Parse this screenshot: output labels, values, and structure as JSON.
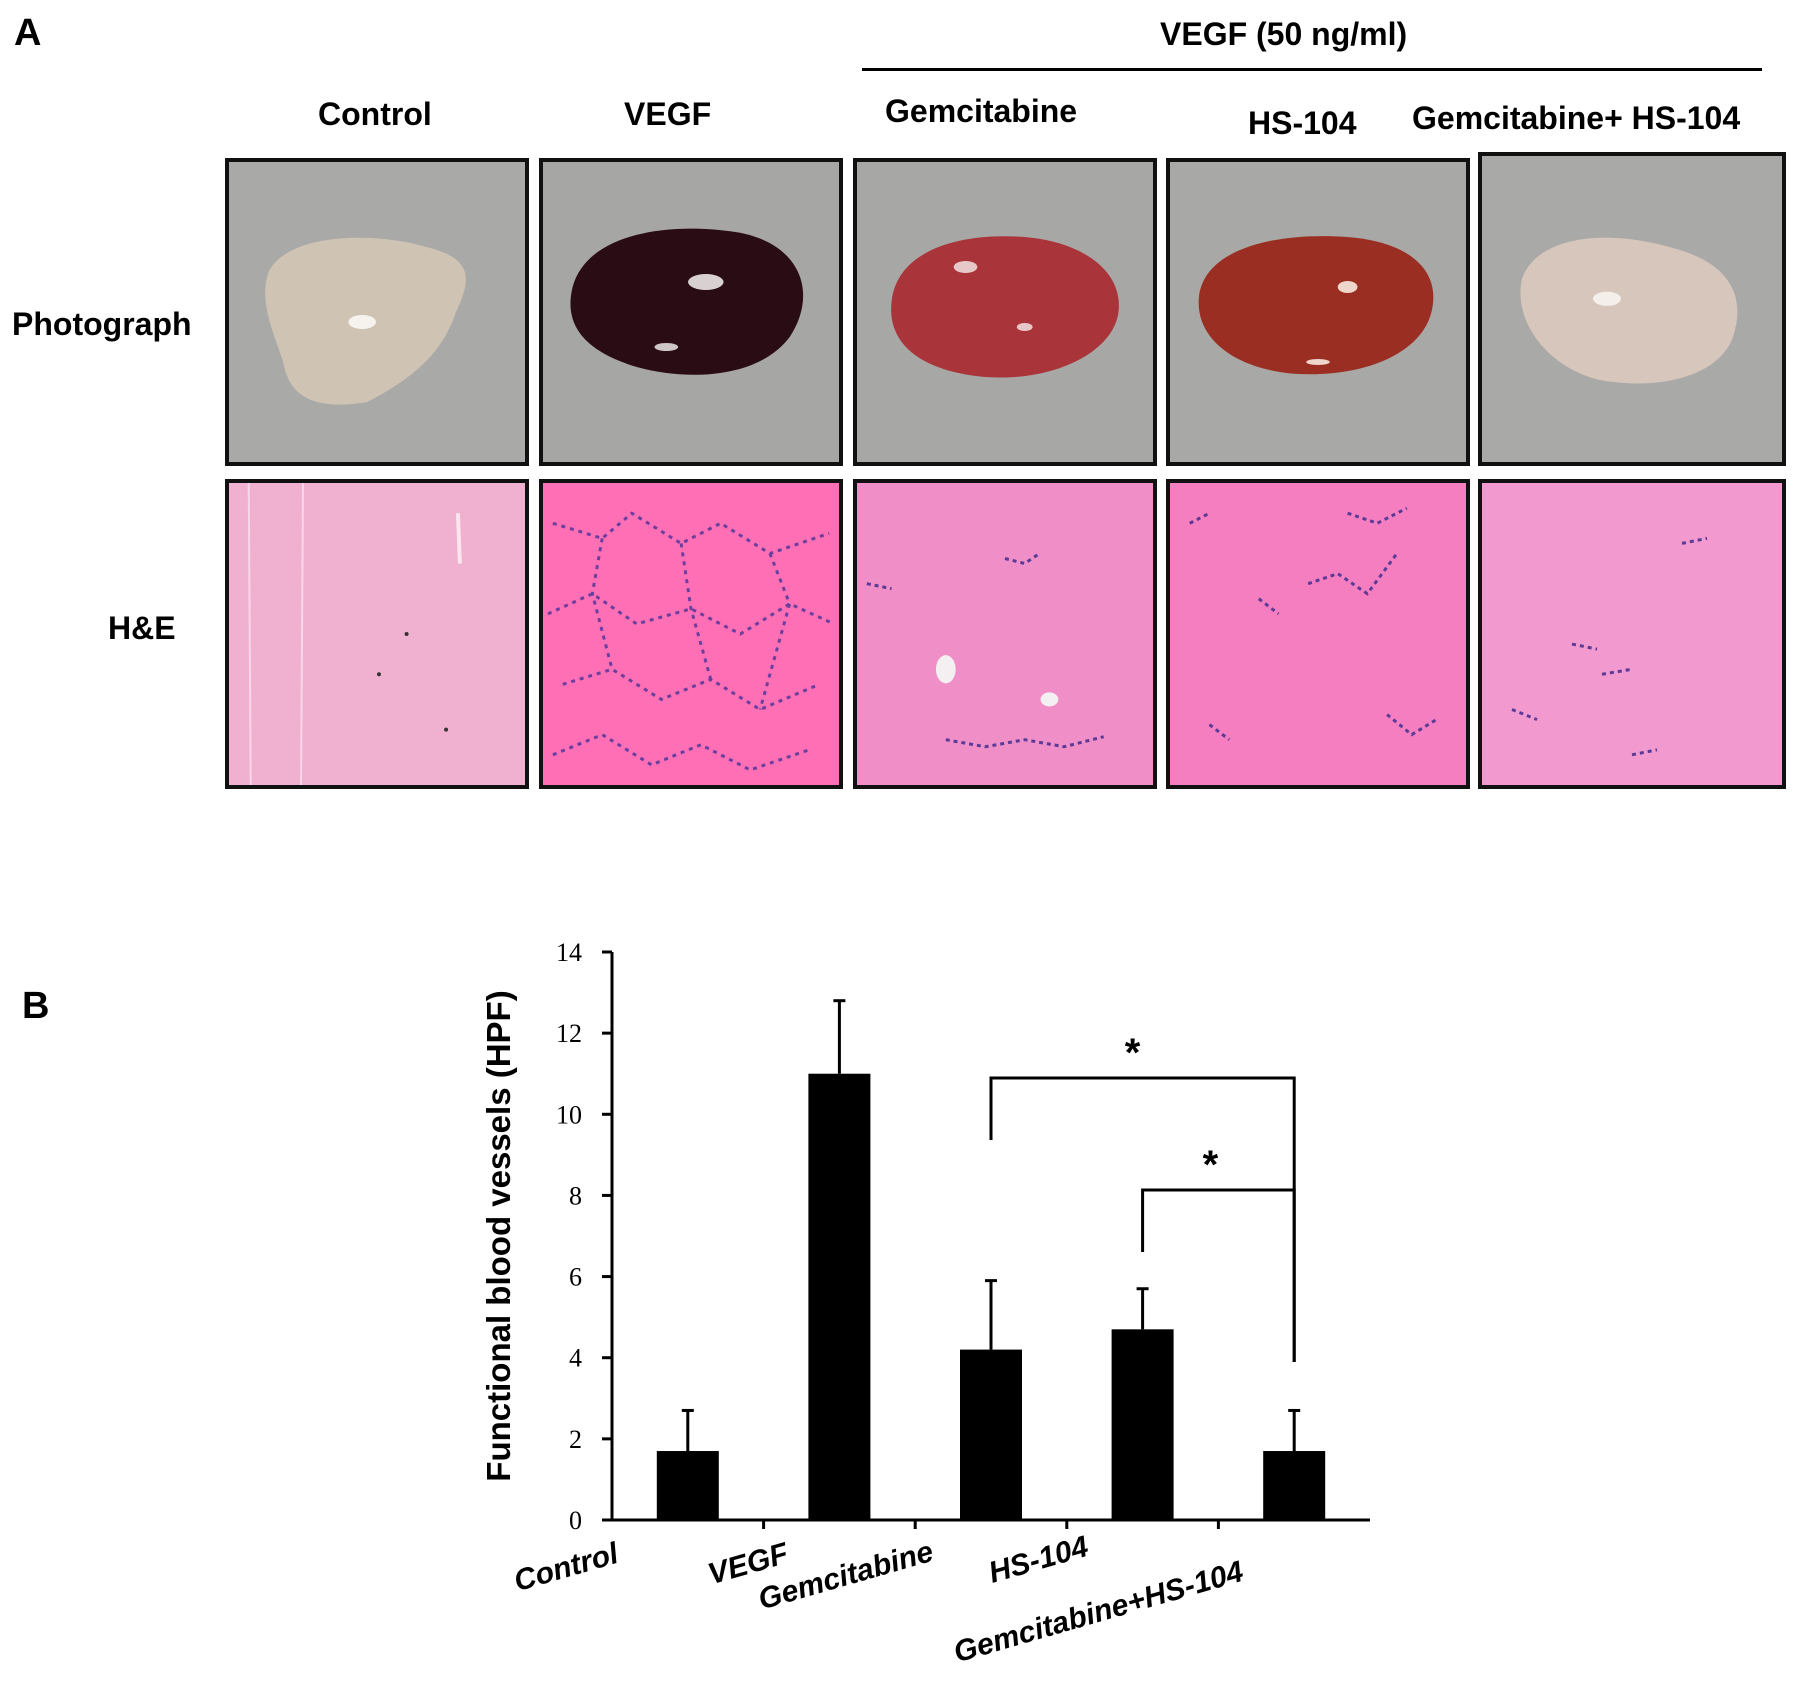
{
  "panel_a": {
    "letter": "A",
    "bracket_label": "VEGF (50 ng/ml)",
    "columns": [
      "Control",
      "VEGF",
      "Gemcitabine",
      "HS-104",
      "Gemcitabine+ HS-104"
    ],
    "rows": [
      "Photograph",
      "H&E"
    ],
    "plug_colors": [
      "#cfc4b4",
      "#2a0d14",
      "#a9343a",
      "#9a2e22",
      "#d6c6bb"
    ],
    "he_colors": [
      "#f0b0d0",
      "#ff6fb5",
      "#f08ec8",
      "#f57ec0",
      "#f29ad0"
    ]
  },
  "chart_data": {
    "panel_letter": "B",
    "type": "bar",
    "categories": [
      "Control",
      "VEGF",
      "Gemcitabine",
      "HS-104",
      "Gemcitabine+HS-104"
    ],
    "values": [
      1.7,
      11.0,
      4.2,
      4.7,
      1.7
    ],
    "errors": [
      1.0,
      1.8,
      1.7,
      1.0,
      1.0
    ],
    "ylabel": "Functional blood vessels (HPF)",
    "xlabel": "",
    "ylim": [
      0,
      14
    ],
    "yticks": [
      0,
      2,
      4,
      6,
      8,
      10,
      12,
      14
    ],
    "bar_color": "#000000",
    "significance": [
      {
        "from": "Gemcitabine",
        "to": "Gemcitabine+HS-104",
        "label": "*"
      },
      {
        "from": "HS-104",
        "to": "Gemcitabine+HS-104",
        "label": "*"
      }
    ]
  }
}
